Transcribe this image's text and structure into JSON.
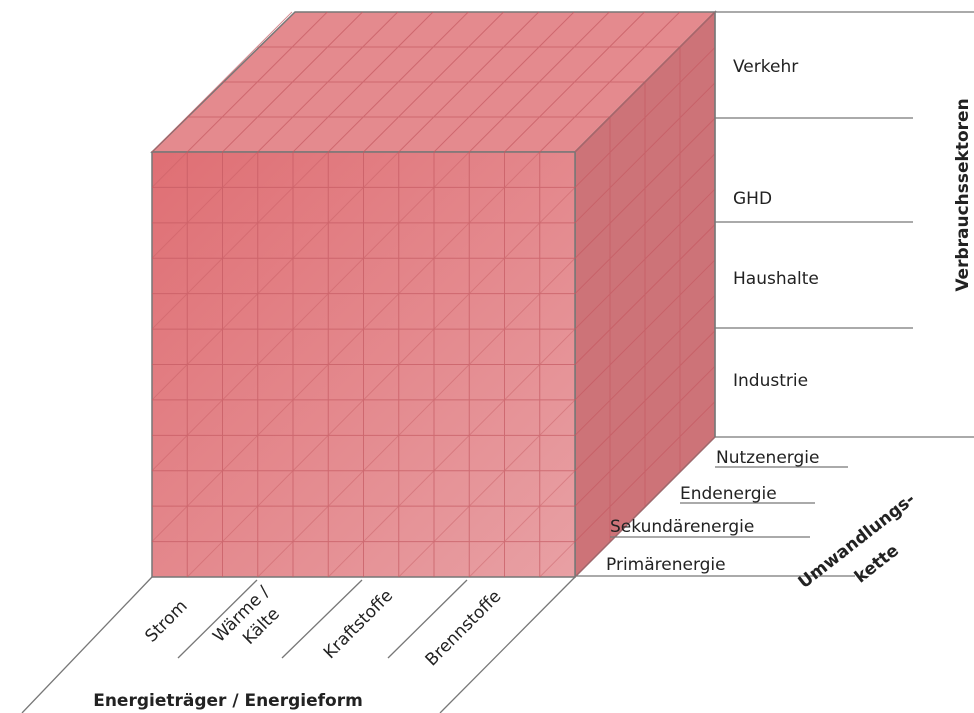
{
  "sectors": {
    "title": "Verbrauchssektoren",
    "items": [
      "Verkehr",
      "GHD",
      "Haushalte",
      "Industrie"
    ]
  },
  "chain": {
    "title_lines": [
      "Umwandlungs-",
      "kette"
    ],
    "items": [
      "Nutzenergie",
      "Endenergie",
      "Sekundärenergie",
      "Primärenergie"
    ]
  },
  "carriers": {
    "title": "Energieträger / Energieform",
    "items": [
      {
        "lines": [
          "Strom"
        ]
      },
      {
        "lines": [
          "Wärme /",
          "Kälte"
        ]
      },
      {
        "lines": [
          "Kraftstoffe"
        ]
      },
      {
        "lines": [
          "Brennstoffe"
        ]
      }
    ]
  }
}
